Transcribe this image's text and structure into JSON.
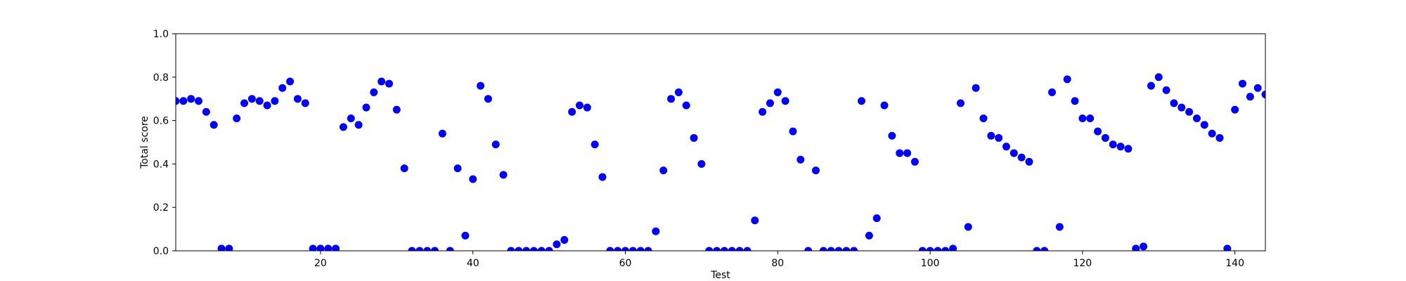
{
  "chart_data": {
    "type": "scatter",
    "xlabel": "Test",
    "ylabel": "Total score",
    "xlim": [
      1,
      144
    ],
    "ylim": [
      0,
      1.0
    ],
    "x_ticks": [
      20,
      40,
      60,
      80,
      100,
      120,
      140
    ],
    "x_tick_labels": [
      "20",
      "40",
      "60",
      "80",
      "100",
      "120",
      "140"
    ],
    "y_ticks": [
      0,
      0.2,
      0.4,
      0.6,
      0.8,
      1.0
    ],
    "y_tick_labels": [
      "0.0",
      "0.2",
      "0.4",
      "0.6",
      "0.8",
      "1.0"
    ],
    "grid": false,
    "legend": "none",
    "marker_color": "#0000ff",
    "x": [
      1,
      2,
      3,
      4,
      5,
      6,
      7,
      8,
      9,
      10,
      11,
      12,
      13,
      14,
      15,
      16,
      17,
      18,
      19,
      20,
      21,
      22,
      23,
      24,
      25,
      26,
      27,
      28,
      29,
      30,
      31,
      32,
      33,
      34,
      35,
      36,
      37,
      38,
      39,
      40,
      41,
      42,
      43,
      44,
      45,
      46,
      47,
      48,
      49,
      50,
      51,
      52,
      53,
      54,
      55,
      56,
      57,
      58,
      59,
      60,
      61,
      62,
      63,
      64,
      65,
      66,
      67,
      68,
      69,
      70,
      71,
      72,
      73,
      74,
      75,
      76,
      77,
      78,
      79,
      80,
      81,
      82,
      83,
      84,
      85,
      86,
      87,
      88,
      89,
      90,
      91,
      92,
      93,
      94,
      95,
      96,
      97,
      98,
      99,
      100,
      101,
      102,
      103,
      104,
      105,
      106,
      107,
      108,
      109,
      110,
      111,
      112,
      113,
      114,
      115,
      116,
      117,
      118,
      119,
      120,
      121,
      122,
      123,
      124,
      125,
      126,
      127,
      128,
      129,
      130,
      131,
      132,
      133,
      134,
      135,
      136,
      137,
      138,
      139,
      140,
      141,
      142,
      143,
      144
    ],
    "y": [
      0.69,
      0.69,
      0.7,
      0.69,
      0.64,
      0.58,
      0.01,
      0.01,
      0.61,
      0.68,
      0.7,
      0.69,
      0.67,
      0.69,
      0.75,
      0.78,
      0.7,
      0.68,
      0.01,
      0.01,
      0.01,
      0.01,
      0.57,
      0.61,
      0.58,
      0.66,
      0.73,
      0.78,
      0.77,
      0.65,
      0.38,
      0.0,
      0.0,
      0.0,
      0.0,
      0.54,
      0.0,
      0.38,
      0.07,
      0.33,
      0.76,
      0.7,
      0.49,
      0.35,
      0.0,
      0.0,
      0.0,
      0.0,
      0.0,
      0.0,
      0.03,
      0.05,
      0.64,
      0.67,
      0.66,
      0.49,
      0.34,
      0.0,
      0.0,
      0.0,
      0.0,
      0.0,
      0.0,
      0.09,
      0.37,
      0.7,
      0.73,
      0.67,
      0.52,
      0.4,
      0.0,
      0.0,
      0.0,
      0.0,
      0.0,
      0.0,
      0.14,
      0.64,
      0.68,
      0.73,
      0.69,
      0.55,
      0.42,
      0.0,
      0.37,
      0.0,
      0.0,
      0.0,
      0.0,
      0.0,
      0.69,
      0.07,
      0.15,
      0.67,
      0.53,
      0.45,
      0.45,
      0.41,
      0.0,
      0.0,
      0.0,
      0.0,
      0.01,
      0.68,
      0.11,
      0.75,
      0.61,
      0.53,
      0.52,
      0.48,
      0.45,
      0.43,
      0.41,
      0.0,
      0.0,
      0.73,
      0.11,
      0.79,
      0.69,
      0.61,
      0.61,
      0.55,
      0.52,
      0.49,
      0.48,
      0.47,
      0.01,
      0.02,
      0.76,
      0.8,
      0.74,
      0.68,
      0.66,
      0.64,
      0.61,
      0.58,
      0.54,
      0.52,
      0.01,
      0.65,
      0.77,
      0.71,
      0.75,
      0.72
    ]
  }
}
